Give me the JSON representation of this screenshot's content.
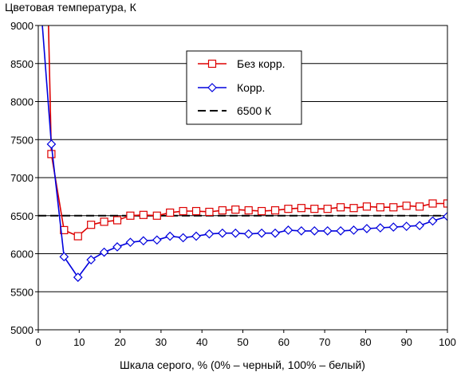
{
  "chart_data": {
    "type": "line",
    "title": "",
    "ylabel": "Цветовая температура, К",
    "xlabel": "Шкала серого, % (0% – черный, 100% – белый)",
    "xlim": [
      0,
      100
    ],
    "ylim": [
      5000,
      9000
    ],
    "xticks": [
      0,
      10,
      20,
      30,
      40,
      50,
      60,
      70,
      80,
      90,
      100
    ],
    "yticks": [
      5000,
      5500,
      6000,
      6500,
      7000,
      7500,
      8000,
      8500,
      9000
    ],
    "grid": "horizontal",
    "legend_position": "top-center",
    "series": [
      {
        "name": "Без корр.",
        "color": "#dd0000",
        "marker": "square",
        "x": [
          2.5,
          3.2,
          6.3,
          9.7,
          12.9,
          16.1,
          19.3,
          22.5,
          25.7,
          29,
          32.2,
          35.4,
          38.6,
          41.8,
          45,
          48.2,
          51.4,
          54.6,
          57.9,
          61.1,
          64.3,
          67.5,
          70.7,
          73.9,
          77.1,
          80.3,
          83.6,
          86.8,
          90,
          93.2,
          96.4,
          100
        ],
        "values": [
          9000,
          7310,
          6310,
          6230,
          6380,
          6420,
          6440,
          6500,
          6510,
          6500,
          6540,
          6560,
          6560,
          6550,
          6570,
          6580,
          6570,
          6560,
          6570,
          6590,
          6600,
          6590,
          6590,
          6610,
          6600,
          6620,
          6610,
          6610,
          6630,
          6620,
          6660,
          6660
        ]
      },
      {
        "name": "Корр.",
        "color": "#0000dd",
        "marker": "diamond",
        "x": [
          1,
          3.2,
          6.3,
          9.7,
          12.9,
          16.1,
          19.3,
          22.5,
          25.7,
          29,
          32.2,
          35.4,
          38.6,
          41.8,
          45,
          48.2,
          51.4,
          54.6,
          57.9,
          61.1,
          64.3,
          67.5,
          70.7,
          73.9,
          77.1,
          80.3,
          83.6,
          86.8,
          90,
          93.2,
          96.4,
          100
        ],
        "values": [
          9000,
          7440,
          5960,
          5690,
          5920,
          6020,
          6090,
          6150,
          6170,
          6180,
          6230,
          6210,
          6230,
          6260,
          6270,
          6270,
          6260,
          6270,
          6270,
          6310,
          6300,
          6300,
          6300,
          6300,
          6310,
          6330,
          6340,
          6350,
          6360,
          6370,
          6430,
          6490
        ]
      },
      {
        "name": "6500 К",
        "color": "#000000",
        "marker": "none",
        "dash": "dashed",
        "x": [
          0,
          100
        ],
        "values": [
          6500,
          6500
        ]
      }
    ]
  }
}
